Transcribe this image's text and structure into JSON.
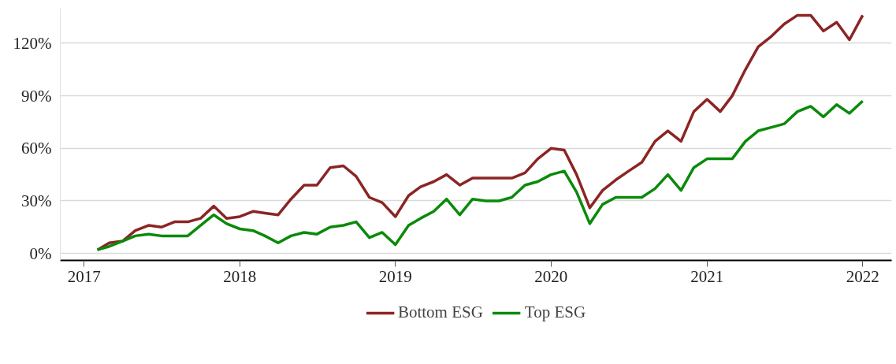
{
  "chart_data": {
    "type": "line",
    "x": [
      "2017-02",
      "2017-03",
      "2017-04",
      "2017-05",
      "2017-06",
      "2017-07",
      "2017-08",
      "2017-09",
      "2017-10",
      "2017-11",
      "2017-12",
      "2018-01",
      "2018-02",
      "2018-03",
      "2018-04",
      "2018-05",
      "2018-06",
      "2018-07",
      "2018-08",
      "2018-09",
      "2018-10",
      "2018-11",
      "2018-12",
      "2019-01",
      "2019-02",
      "2019-03",
      "2019-04",
      "2019-05",
      "2019-06",
      "2019-07",
      "2019-08",
      "2019-09",
      "2019-10",
      "2019-11",
      "2019-12",
      "2020-01",
      "2020-02",
      "2020-03",
      "2020-04",
      "2020-05",
      "2020-06",
      "2020-07",
      "2020-08",
      "2020-09",
      "2020-10",
      "2020-11",
      "2020-12",
      "2021-01",
      "2021-02",
      "2021-03",
      "2021-04",
      "2021-05",
      "2021-06",
      "2021-07",
      "2021-08",
      "2021-09",
      "2021-10",
      "2021-11",
      "2021-12",
      "2022-01"
    ],
    "series": [
      {
        "name": "Bottom ESG",
        "color": "#8b2525",
        "values": [
          2,
          6,
          7,
          13,
          16,
          15,
          18,
          18,
          20,
          27,
          20,
          21,
          24,
          23,
          22,
          31,
          39,
          39,
          49,
          50,
          44,
          32,
          29,
          21,
          33,
          38,
          41,
          45,
          39,
          43,
          43,
          43,
          43,
          46,
          54,
          60,
          59,
          45,
          26,
          36,
          42,
          47,
          52,
          64,
          70,
          64,
          81,
          88,
          81,
          90,
          105,
          118,
          124,
          131,
          136,
          136,
          127,
          132,
          122,
          136
        ]
      },
      {
        "name": "Top ESG",
        "color": "#0a8a0a",
        "values": [
          2,
          4,
          7,
          10,
          11,
          10,
          10,
          10,
          16,
          22,
          17,
          14,
          13,
          10,
          6,
          10,
          12,
          11,
          15,
          16,
          18,
          9,
          12,
          5,
          16,
          20,
          24,
          31,
          22,
          31,
          30,
          30,
          32,
          39,
          41,
          45,
          47,
          35,
          17,
          28,
          32,
          32,
          32,
          37,
          45,
          36,
          49,
          54,
          54,
          54,
          64,
          70,
          72,
          74,
          81,
          84,
          78,
          85,
          80,
          87
        ]
      }
    ],
    "xlim": [
      "2016-11-06",
      "2022-03-10"
    ],
    "xticks": [
      "2017",
      "2018",
      "2019",
      "2020",
      "2021",
      "2022"
    ],
    "ylim": [
      -4,
      140
    ],
    "yticks": [
      {
        "value": 0,
        "label": "0%"
      },
      {
        "value": 30,
        "label": "30%"
      },
      {
        "value": 60,
        "label": "60%"
      },
      {
        "value": 90,
        "label": "90%"
      },
      {
        "value": 120,
        "label": "120%"
      }
    ],
    "grid": "y",
    "legend": "bottom",
    "line_style": "solid",
    "marker": "none"
  }
}
